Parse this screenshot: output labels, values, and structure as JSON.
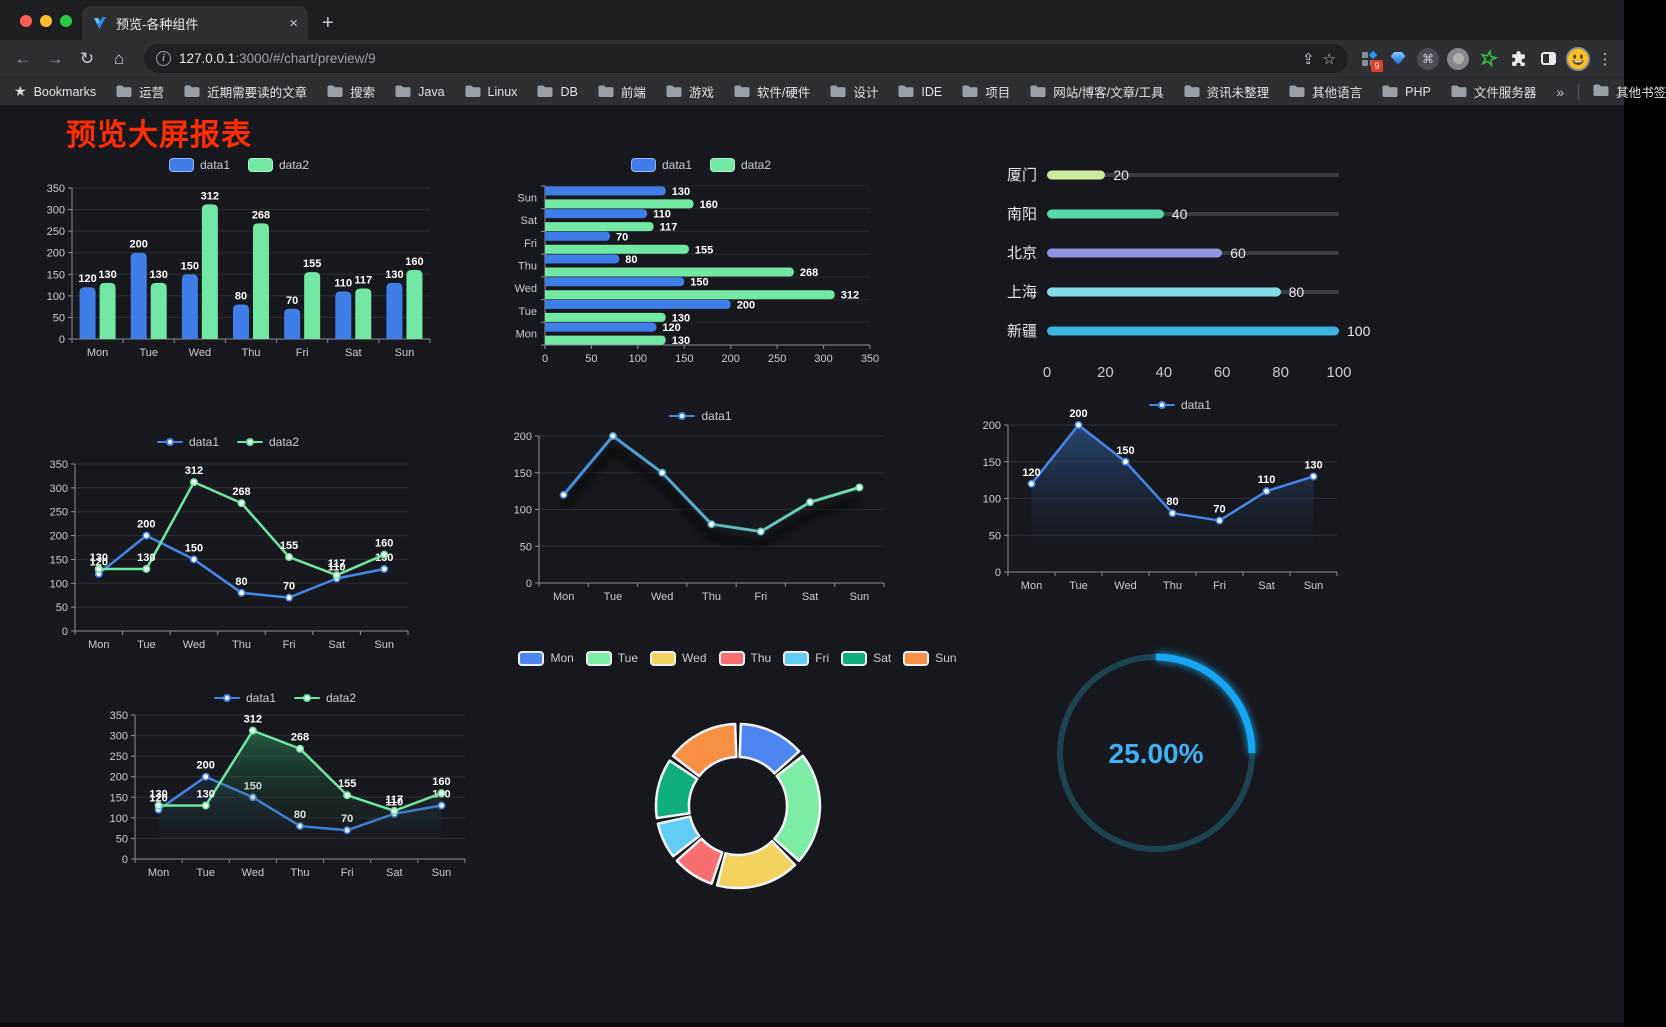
{
  "browser": {
    "tab_title": "预览-各种组件",
    "url_host": "127.0.0.1",
    "url_rest": ":3000/#/chart/preview/9",
    "bookmarks_label": "Bookmarks",
    "bookmarks": [
      "运营",
      "近期需要读的文章",
      "搜索",
      "Java",
      "Linux",
      "DB",
      "前端",
      "游戏",
      "软件/硬件",
      "设计",
      "IDE",
      "项目",
      "网站/博客/文章/工具",
      "资讯未整理",
      "其他语言",
      "PHP",
      "文件服务器"
    ],
    "overflow_chevron": "»",
    "other_bookmarks": "其他书签",
    "extension_badge": "9",
    "icons": {
      "back": "←",
      "forward": "→",
      "reload": "↻",
      "home": "⌂",
      "menu": "⋮",
      "close_tab": "×",
      "new_tab": "+",
      "star": "☆",
      "command": "⌘",
      "share": "⇪"
    }
  },
  "page": {
    "title": "预览大屏报表",
    "title_color": "#ff2d00"
  },
  "chart_data": [
    {
      "id": "bar-vertical",
      "type": "bar",
      "title": "",
      "categories": [
        "Mon",
        "Tue",
        "Wed",
        "Thu",
        "Fri",
        "Sat",
        "Sun"
      ],
      "series": [
        {
          "name": "data1",
          "color": "#3f7ee8",
          "values": [
            120,
            200,
            150,
            80,
            70,
            110,
            130
          ]
        },
        {
          "name": "data2",
          "color": "#72e8a4",
          "values": [
            130,
            130,
            312,
            268,
            155,
            117,
            160
          ]
        }
      ],
      "ylim": [
        0,
        350
      ],
      "ystep": 50,
      "grid": true,
      "legend_position": "top"
    },
    {
      "id": "bar-horizontal",
      "type": "bar",
      "orientation": "horizontal",
      "display_order_top_to_bottom": [
        "Sun",
        "Sat",
        "Fri",
        "Thu",
        "Wed",
        "Tue",
        "Mon"
      ],
      "categories": [
        "Mon",
        "Tue",
        "Wed",
        "Thu",
        "Fri",
        "Sat",
        "Sun"
      ],
      "series": [
        {
          "name": "data1",
          "color": "#3f7ee8",
          "values": [
            120,
            200,
            150,
            80,
            70,
            110,
            130
          ]
        },
        {
          "name": "data2",
          "color": "#72e8a4",
          "values": [
            130,
            130,
            312,
            268,
            155,
            117,
            160
          ]
        }
      ],
      "xlim": [
        0,
        350
      ],
      "xstep": 50,
      "legend_position": "top"
    },
    {
      "id": "progress-list",
      "type": "bar",
      "subtype": "progress",
      "items": [
        {
          "label": "厦门",
          "value": 20,
          "color": "#cdea9f"
        },
        {
          "label": "南阳",
          "value": 40,
          "color": "#56d7a6"
        },
        {
          "label": "北京",
          "value": 60,
          "color": "#9095e2"
        },
        {
          "label": "上海",
          "value": 80,
          "color": "#83dbe6"
        },
        {
          "label": "新疆",
          "value": 100,
          "color": "#3db4e0"
        }
      ],
      "axis_ticks": [
        0,
        20,
        40,
        60,
        80,
        100
      ],
      "max": 100
    },
    {
      "id": "line-two-series",
      "type": "line",
      "categories": [
        "Mon",
        "Tue",
        "Wed",
        "Thu",
        "Fri",
        "Sat",
        "Sun"
      ],
      "series": [
        {
          "name": "data1",
          "color": "#4586e8",
          "values": [
            120,
            200,
            150,
            80,
            70,
            110,
            130
          ]
        },
        {
          "name": "data2",
          "color": "#6fe7a0",
          "values": [
            130,
            130,
            312,
            268,
            155,
            117,
            160
          ]
        }
      ],
      "ylim": [
        0,
        350
      ],
      "ystep": 50,
      "point_labels": true,
      "legend_position": "top"
    },
    {
      "id": "line-gradient",
      "type": "line",
      "categories": [
        "Mon",
        "Tue",
        "Wed",
        "Thu",
        "Fri",
        "Sat",
        "Sun"
      ],
      "series": [
        {
          "name": "data1",
          "color": "#4586e8",
          "gradient": [
            "#3f82e8",
            "#6fe7a3"
          ],
          "values": [
            120,
            200,
            150,
            80,
            70,
            110,
            130
          ]
        }
      ],
      "ylim": [
        0,
        200
      ],
      "ystep": 50,
      "point_labels": false,
      "shadow": true,
      "legend_position": "top"
    },
    {
      "id": "line-area",
      "type": "area",
      "categories": [
        "Mon",
        "Tue",
        "Wed",
        "Thu",
        "Fri",
        "Sat",
        "Sun"
      ],
      "series": [
        {
          "name": "data1",
          "color": "#4586e8",
          "area": "rgba(56,110,190,0.55)",
          "values": [
            120,
            200,
            150,
            80,
            70,
            110,
            130
          ]
        }
      ],
      "ylim": [
        0,
        200
      ],
      "ystep": 50,
      "point_labels": true,
      "legend_position": "top"
    },
    {
      "id": "line-area-two",
      "type": "area",
      "categories": [
        "Mon",
        "Tue",
        "Wed",
        "Thu",
        "Fri",
        "Sat",
        "Sun"
      ],
      "series": [
        {
          "name": "data1",
          "color": "#4586e8",
          "area": "rgba(56,110,190,0.5)",
          "values": [
            120,
            200,
            150,
            80,
            70,
            110,
            130
          ]
        },
        {
          "name": "data2",
          "color": "#6fe7a0",
          "area": "rgba(60,190,120,0.5)",
          "values": [
            130,
            130,
            312,
            268,
            155,
            117,
            160
          ]
        }
      ],
      "ylim": [
        0,
        350
      ],
      "ystep": 50,
      "point_labels": true,
      "legend_position": "top"
    },
    {
      "id": "donut",
      "type": "pie",
      "subtype": "donut",
      "categories": [
        "Mon",
        "Tue",
        "Wed",
        "Thu",
        "Fri",
        "Sat",
        "Sun"
      ],
      "values": [
        120,
        200,
        150,
        80,
        70,
        110,
        130
      ],
      "colors": [
        "#4d86f0",
        "#7deda5",
        "#f4d25e",
        "#f76f6f",
        "#63ccf5",
        "#10ad7f",
        "#f78f44"
      ],
      "legend_position": "top"
    },
    {
      "id": "gauge",
      "type": "pie",
      "subtype": "gauge",
      "percent": 25,
      "label": "25.00%",
      "color": "#17a7f2",
      "track_color": "#1c4450"
    }
  ]
}
